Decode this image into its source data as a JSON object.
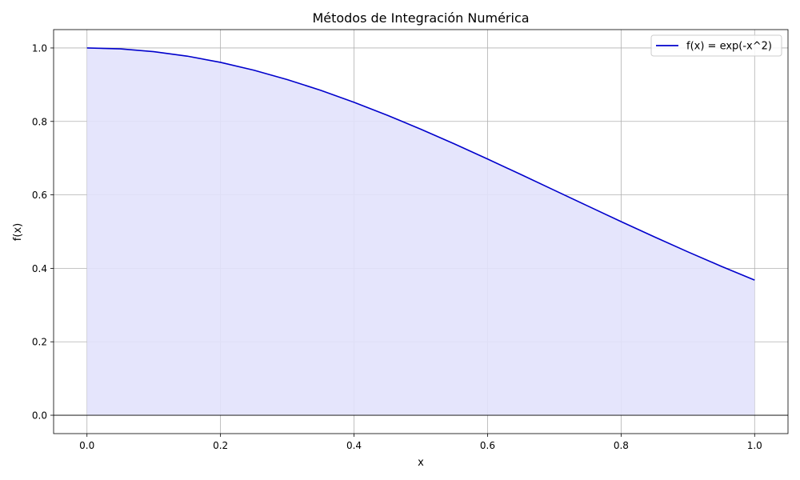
{
  "chart_data": {
    "type": "area",
    "title": "Métodos de Integración Numérica",
    "xlabel": "x",
    "ylabel": "f(x)",
    "xlim": [
      -0.05,
      1.05
    ],
    "ylim": [
      -0.05,
      1.05
    ],
    "xticks": [
      0.0,
      0.2,
      0.4,
      0.6,
      0.8,
      1.0
    ],
    "xtick_labels": [
      "0.0",
      "0.2",
      "0.4",
      "0.6",
      "0.8",
      "1.0"
    ],
    "yticks": [
      0.0,
      0.2,
      0.4,
      0.6,
      0.8,
      1.0
    ],
    "ytick_labels": [
      "0.0",
      "0.2",
      "0.4",
      "0.6",
      "0.8",
      "1.0"
    ],
    "grid": true,
    "legend_position": "top-right",
    "series": [
      {
        "name": "f(x) = exp(-x^2)",
        "color": "#0000cc",
        "fill_color": "#e2e2fc",
        "x": [
          0.0,
          0.05,
          0.1,
          0.15,
          0.2,
          0.25,
          0.3,
          0.35,
          0.4,
          0.45,
          0.5,
          0.55,
          0.6,
          0.65,
          0.7,
          0.75,
          0.8,
          0.85,
          0.9,
          0.95,
          1.0
        ],
        "y": [
          1.0,
          0.9975,
          0.99,
          0.9778,
          0.9608,
          0.9394,
          0.9139,
          0.8847,
          0.8521,
          0.8167,
          0.7788,
          0.739,
          0.6977,
          0.6554,
          0.6126,
          0.5698,
          0.5273,
          0.4856,
          0.4449,
          0.4056,
          0.3679
        ]
      }
    ]
  }
}
